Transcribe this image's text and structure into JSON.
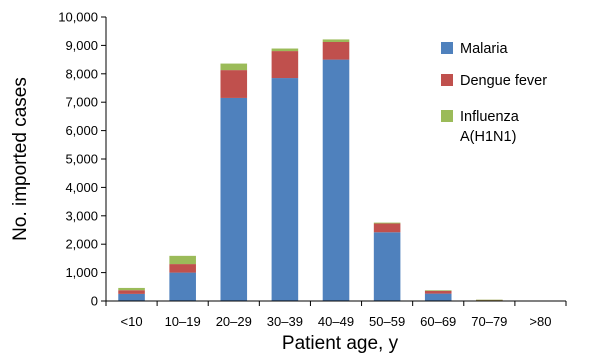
{
  "chart_data": {
    "type": "bar",
    "stacked": true,
    "title": "",
    "xlabel": "Patient age, y",
    "ylabel": "No. imported cases",
    "ylim": [
      0,
      10000
    ],
    "yticks": [
      "0",
      "1,000",
      "2,000",
      "3,000",
      "4,000",
      "5,000",
      "6,000",
      "7,000",
      "8,000",
      "9,000",
      "10,000"
    ],
    "grid": false,
    "legend_position": "top-right",
    "categories": [
      "<10",
      "10–19",
      "20–29",
      "30–39",
      "40–49",
      "50–59",
      "60–69",
      "70–79",
      ">80"
    ],
    "series": [
      {
        "name": "Malaria",
        "color": "#4f81bd",
        "values": [
          250,
          1000,
          7150,
          7850,
          8500,
          2420,
          260,
          20,
          0
        ]
      },
      {
        "name": "Dengue fever",
        "color": "#c0504d",
        "values": [
          130,
          300,
          980,
          950,
          620,
          310,
          100,
          20,
          5
        ]
      },
      {
        "name": "Influenza A(H1N1)",
        "label_lines": [
          "Influenza",
          "A(H1N1)"
        ],
        "color": "#9bbb59",
        "values": [
          80,
          290,
          230,
          90,
          90,
          30,
          20,
          5,
          0
        ]
      }
    ]
  }
}
